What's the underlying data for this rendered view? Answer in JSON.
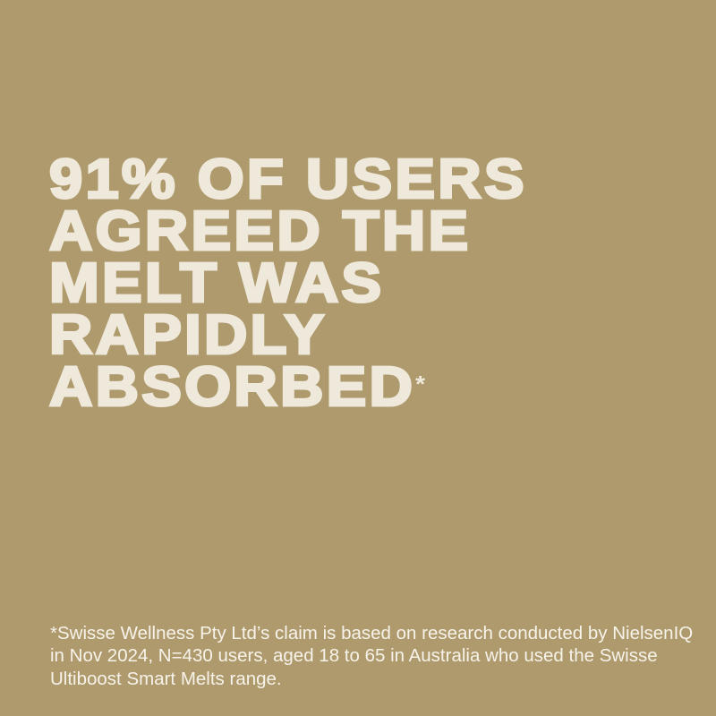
{
  "headline": {
    "lines": [
      "91% OF USERS",
      "AGREED THE",
      "MELT WAS",
      "RAPIDLY",
      "ABSORBED"
    ],
    "footnote_marker": "*"
  },
  "footnote": "*Swisse Wellness Pty Ltd’s claim is based on research conducted by NielsenIQ in Nov 2024, N=430 users, aged 18 to 65 in Australia who used the Swisse Ultiboost Smart Melts range.",
  "colors": {
    "background": "#ae9a6c",
    "headline": "#efe9dc",
    "footnote": "#f7f3ea"
  }
}
